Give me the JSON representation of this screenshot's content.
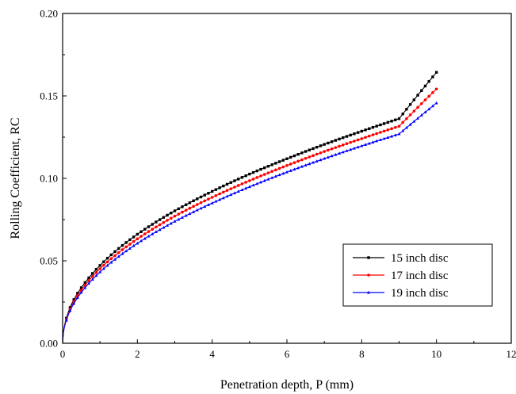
{
  "chart_data": {
    "type": "line",
    "xlabel": "Penetration depth, P (mm)",
    "ylabel": "Rolling Coefficient, RC",
    "xlim": [
      0,
      12
    ],
    "ylim": [
      0,
      0.2
    ],
    "xticks": [
      "0",
      "2",
      "4",
      "6",
      "8",
      "10",
      "12"
    ],
    "yticks": [
      "0.00",
      "0.05",
      "0.10",
      "0.15",
      "0.20"
    ],
    "grid": false,
    "legend_position": "bottom-right",
    "x": [
      0,
      0.1,
      0.25,
      0.5,
      1,
      1.5,
      2,
      3,
      4,
      5,
      6,
      7,
      8,
      9,
      10
    ],
    "series": [
      {
        "name": "15 inch disc",
        "color": "#000000",
        "marker": "square",
        "values": [
          0,
          0.0152,
          0.0243,
          0.0337,
          0.0472,
          0.0575,
          0.0661,
          0.0803,
          0.0921,
          0.1026,
          0.1119,
          0.1206,
          0.1286,
          0.1362,
          0.1643
        ]
      },
      {
        "name": "17 inch disc",
        "color": "#ff0000",
        "marker": "circle",
        "values": [
          0,
          0.0145,
          0.0231,
          0.0322,
          0.0452,
          0.055,
          0.0633,
          0.0771,
          0.0885,
          0.0986,
          0.1078,
          0.1163,
          0.1241,
          0.1316,
          0.1542
        ]
      },
      {
        "name": "19 inch disc",
        "color": "#0000ff",
        "marker": "triangle",
        "values": [
          0,
          0.0139,
          0.022,
          0.0308,
          0.0432,
          0.0526,
          0.0606,
          0.0739,
          0.085,
          0.0949,
          0.1038,
          0.112,
          0.1197,
          0.1269,
          0.1457
        ]
      }
    ]
  }
}
